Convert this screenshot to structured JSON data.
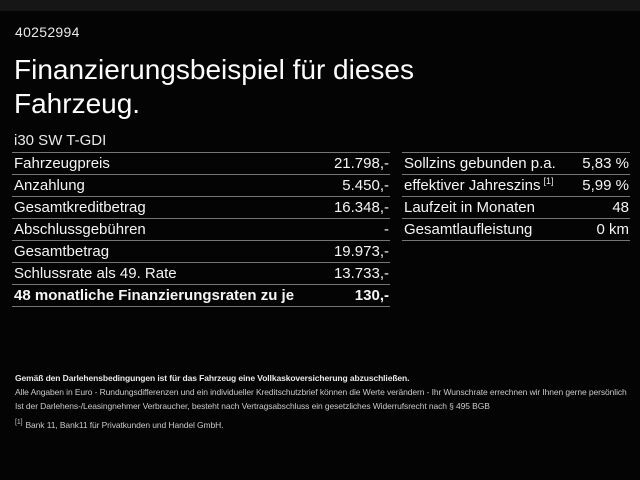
{
  "header": {
    "vehicle_id": "40252994",
    "title": "Finanzierungsbeispiel für dieses Fahrzeug.",
    "model": "i30 SW T-GDI"
  },
  "left_table": {
    "rows": [
      {
        "label": "Fahrzeugpreis",
        "value": "21.798,-"
      },
      {
        "label": "Anzahlung",
        "value": "5.450,-"
      },
      {
        "label": "Gesamtkreditbetrag",
        "value": "16.348,-"
      },
      {
        "label": "Abschlussgebühren",
        "value": "-"
      },
      {
        "label": "Gesamtbetrag",
        "value": "19.973,-"
      },
      {
        "label": "Schlussrate als 49. Rate",
        "value": "13.733,-"
      },
      {
        "label": "48 monatliche Finanzierungsraten zu je",
        "value": "130,-"
      }
    ]
  },
  "right_table": {
    "rows": [
      {
        "label": "Sollzins gebunden p.a.",
        "value": "5,83 %"
      },
      {
        "label": "effektiver Jahreszins",
        "sup": "[1]",
        "value": "5,99 %"
      },
      {
        "label": "Laufzeit in Monaten",
        "value": "48"
      },
      {
        "label": "Gesamtlaufleistung",
        "value": "0 km"
      }
    ]
  },
  "footer": {
    "insurance_note": "Gemäß den Darlehensbedingungen ist für das Fahrzeug eine Vollkaskoversicherung abzuschließen.",
    "disclaimer1": "Alle Angaben in Euro - Rundungsdifferenzen und ein individueller Kreditschutzbrief können die Werte verändern - Ihr Wunschrate errechnen wir Ihnen gerne persönlich",
    "disclaimer2": "Ist der Darlehens-/Leasingnehmer Verbraucher, besteht nach Vertragsabschluss ein gesetzliches Widerrufsrecht nach § 495 BGB",
    "footnote_marker": "[1]",
    "footnote_text": "Bank 11, Bank11 für Privatkunden und Handel GmbH."
  },
  "colors": {
    "background": "#040404",
    "separator": "#757575",
    "text_primary": "#f5f5f5",
    "text_secondary": "#c9c9c9"
  }
}
